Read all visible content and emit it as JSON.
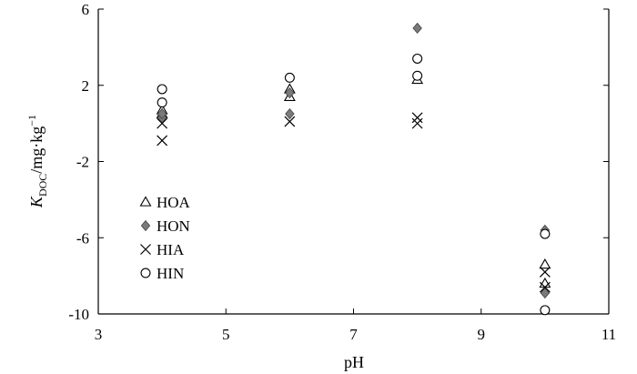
{
  "chart_data": {
    "type": "scatter",
    "xlabel": "pH",
    "ylabel": {
      "main": "K",
      "subscript": "DOC",
      "unit": "/mg·kg",
      "superscript": "−1"
    },
    "xlim": [
      3,
      11
    ],
    "ylim": [
      -10,
      6
    ],
    "xticks": [
      3,
      5,
      7,
      9,
      11
    ],
    "yticks": [
      -10,
      -6,
      -2,
      2,
      6
    ],
    "legend_placement": "lower-left inside",
    "grid": false,
    "series": [
      {
        "name": "HOA",
        "marker": "triangle-open",
        "points": [
          [
            4,
            0.7
          ],
          [
            4,
            0.5
          ],
          [
            6,
            1.8
          ],
          [
            6,
            1.4
          ],
          [
            8,
            2.3
          ],
          [
            10,
            -7.4
          ],
          [
            10,
            -8.4
          ]
        ]
      },
      {
        "name": "HON",
        "marker": "diamond-filled",
        "color": "#7a7a7a",
        "points": [
          [
            4,
            0.3
          ],
          [
            4,
            0.5
          ],
          [
            6,
            1.6
          ],
          [
            6,
            0.5
          ],
          [
            8,
            5.0
          ],
          [
            10,
            -5.6
          ],
          [
            10,
            -8.9
          ]
        ]
      },
      {
        "name": "HIA",
        "marker": "x",
        "points": [
          [
            4,
            0.0
          ],
          [
            4,
            -0.9
          ],
          [
            6,
            0.1
          ],
          [
            8,
            0.3
          ],
          [
            8,
            0.0
          ],
          [
            10,
            -7.8
          ],
          [
            10,
            -8.6
          ]
        ]
      },
      {
        "name": "HIN",
        "marker": "circle-open",
        "points": [
          [
            4,
            1.8
          ],
          [
            4,
            1.1
          ],
          [
            6,
            2.4
          ],
          [
            8,
            3.4
          ],
          [
            8,
            2.5
          ],
          [
            10,
            -5.8
          ],
          [
            10,
            -9.8
          ]
        ]
      }
    ]
  }
}
